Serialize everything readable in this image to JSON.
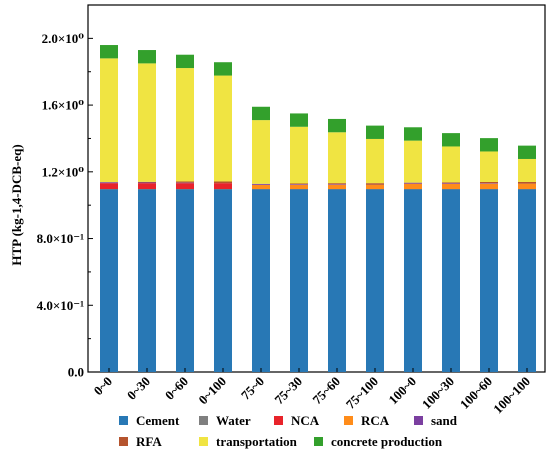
{
  "chart_data": {
    "type": "bar",
    "stacked": true,
    "title": "",
    "xlabel": "",
    "ylabel": "HTP (kg-1,4-DCB-eq)",
    "ylim": [
      0,
      2.2
    ],
    "yticks": [
      {
        "value": 0.0,
        "label": "0.0"
      },
      {
        "value": 0.4,
        "label": "4.0×10⁻¹"
      },
      {
        "value": 0.8,
        "label": "8.0×10⁻¹"
      },
      {
        "value": 1.2,
        "label": "1.2×10⁰"
      },
      {
        "value": 1.6,
        "label": "1.6×10⁰"
      },
      {
        "value": 2.0,
        "label": "2.0×10⁰"
      }
    ],
    "grid": false,
    "legend_position": "bottom",
    "categories": [
      "0~0",
      "0~30",
      "0~60",
      "0~100",
      "75~0",
      "75~30",
      "75~60",
      "75~100",
      "100~0",
      "100~30",
      "100~60",
      "100~100"
    ],
    "series": [
      {
        "name": "Cement",
        "color": "#2878b5",
        "values": [
          1.095,
          1.095,
          1.095,
          1.095,
          1.095,
          1.095,
          1.095,
          1.095,
          1.095,
          1.095,
          1.095,
          1.095
        ]
      },
      {
        "name": "Water",
        "color": "#7f7f7f",
        "values": [
          0.002,
          0.002,
          0.002,
          0.002,
          0.002,
          0.002,
          0.002,
          0.002,
          0.002,
          0.002,
          0.002,
          0.002
        ]
      },
      {
        "name": "NCA",
        "color": "#e8232a",
        "values": [
          0.035,
          0.035,
          0.035,
          0.035,
          0.0,
          0.0,
          0.0,
          0.0,
          0.0,
          0.0,
          0.0,
          0.0
        ]
      },
      {
        "name": "RCA",
        "color": "#ff8c1a",
        "values": [
          0.0,
          0.0,
          0.0,
          0.0,
          0.025,
          0.025,
          0.025,
          0.025,
          0.032,
          0.032,
          0.032,
          0.032
        ]
      },
      {
        "name": "sand",
        "color": "#7b3fa0",
        "values": [
          0.006,
          0.004,
          0.003,
          0.0,
          0.006,
          0.004,
          0.003,
          0.0,
          0.006,
          0.004,
          0.003,
          0.0
        ]
      },
      {
        "name": "RFA",
        "color": "#b5542e",
        "values": [
          0.0,
          0.004,
          0.007,
          0.01,
          0.0,
          0.004,
          0.007,
          0.01,
          0.0,
          0.004,
          0.007,
          0.01
        ]
      },
      {
        "name": "transportation",
        "color": "#f0e442",
        "values": [
          0.742,
          0.71,
          0.68,
          0.635,
          0.382,
          0.34,
          0.305,
          0.265,
          0.252,
          0.215,
          0.183,
          0.138
        ]
      },
      {
        "name": "concrete production",
        "color": "#33a02c",
        "values": [
          0.08,
          0.08,
          0.08,
          0.08,
          0.08,
          0.08,
          0.08,
          0.08,
          0.08,
          0.08,
          0.08,
          0.08
        ]
      }
    ],
    "legend_rows": [
      [
        "Cement",
        "Water",
        "NCA",
        "RCA",
        "sand"
      ],
      [
        "RFA",
        "transportation",
        "concrete production"
      ]
    ]
  }
}
